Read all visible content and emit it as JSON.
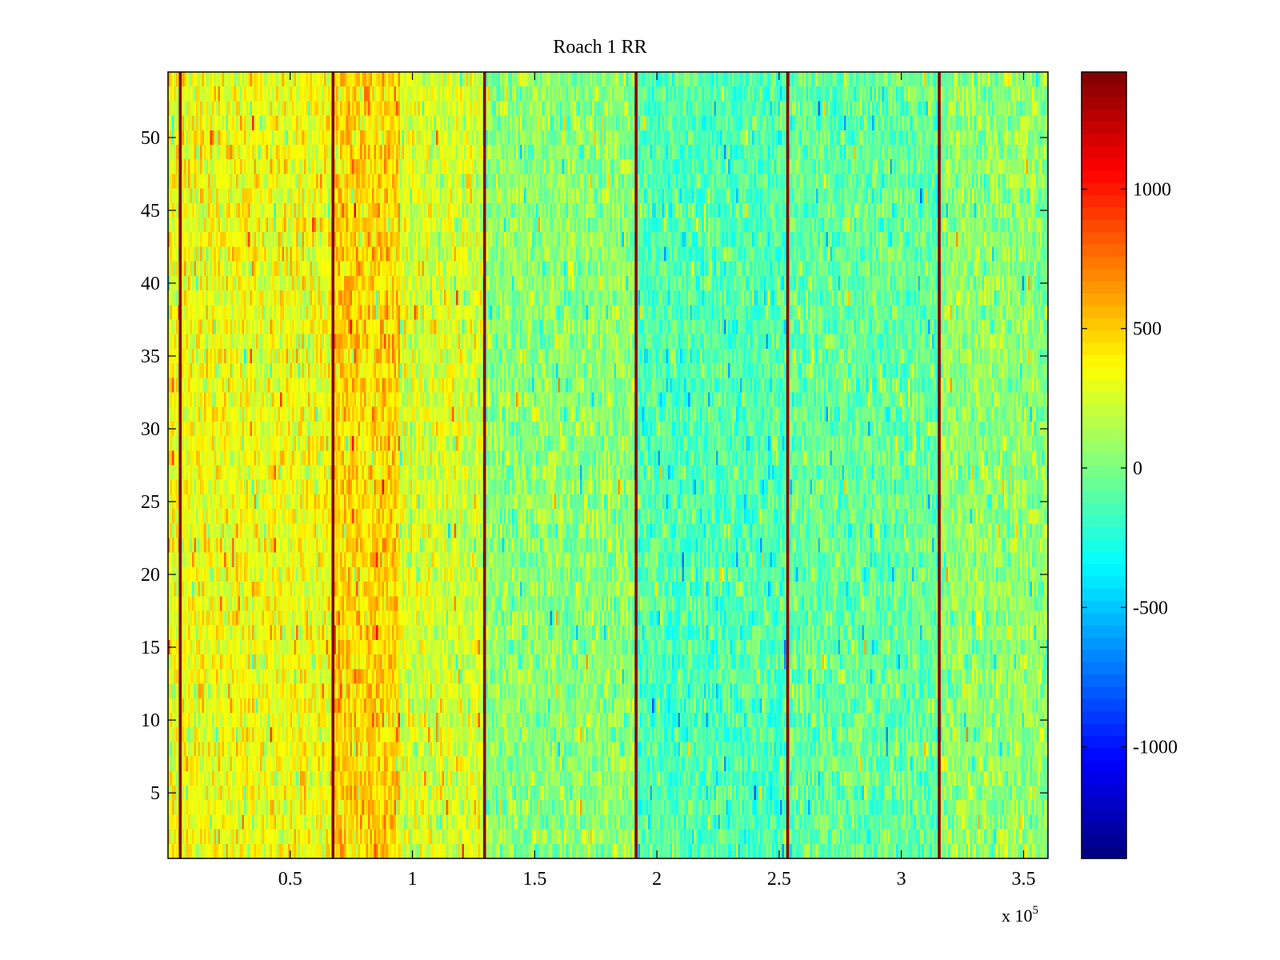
{
  "chart_data": {
    "type": "heatmap",
    "title": "Roach 1 RR",
    "xlabel": "",
    "ylabel": "",
    "x_multiplier_label": "x 10",
    "x_multiplier_exponent": "5",
    "xlim": [
      0,
      360000
    ],
    "ylim": [
      0.5,
      54.5
    ],
    "x_ticks": [
      0.5,
      1,
      1.5,
      2,
      2.5,
      3,
      3.5
    ],
    "x_tick_labels": [
      "0.5",
      "1",
      "1.5",
      "2",
      "2.5",
      "3",
      "3.5"
    ],
    "y_ticks": [
      5,
      10,
      15,
      20,
      25,
      30,
      35,
      40,
      45,
      50
    ],
    "y_tick_labels": [
      "5",
      "10",
      "15",
      "20",
      "25",
      "30",
      "35",
      "40",
      "45",
      "50"
    ],
    "rows": 54,
    "colorbar": {
      "colormap": "jet",
      "clim": [
        -1400,
        1420
      ],
      "ticks": [
        1000,
        500,
        0,
        -500,
        -1000
      ],
      "tick_labels": [
        "1000",
        "500",
        "0",
        "-500",
        "-1000"
      ]
    },
    "dark_red_column_positions": [
      5000,
      67500,
      129500,
      191500,
      253500,
      315500
    ],
    "column_region_means": [
      {
        "x_range": [
          0,
          67500
        ],
        "mean": 330
      },
      {
        "x_range": [
          67500,
          95000
        ],
        "mean": 480
      },
      {
        "x_range": [
          95000,
          129500
        ],
        "mean": 250
      },
      {
        "x_range": [
          129500,
          191500
        ],
        "mean": 50
      },
      {
        "x_range": [
          191500,
          253500
        ],
        "mean": -120
      },
      {
        "x_range": [
          253500,
          315500
        ],
        "mean": -60
      },
      {
        "x_range": [
          315500,
          360000
        ],
        "mean": 60
      }
    ],
    "grid": false,
    "legend": "none"
  }
}
